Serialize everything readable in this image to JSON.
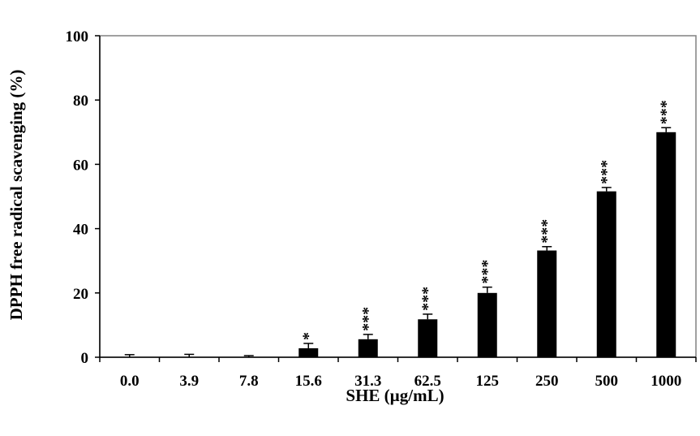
{
  "chart_data": {
    "type": "bar",
    "title": "",
    "xlabel": "SHE (µg/mL)",
    "ylabel": "DPPH free radical scavenging (%)",
    "ylim": [
      0,
      100
    ],
    "yticks": [
      0,
      20,
      40,
      60,
      80,
      100
    ],
    "categories": [
      "0.0",
      "3.9",
      "7.8",
      "15.6",
      "31.3",
      "62.5",
      "125",
      "250",
      "500",
      "1000"
    ],
    "values": [
      0,
      0,
      0,
      2.8,
      5.6,
      11.8,
      20.0,
      33.2,
      51.6,
      70.0
    ],
    "errors": [
      0.8,
      0.9,
      0.5,
      1.5,
      1.5,
      1.6,
      1.8,
      1.2,
      1.2,
      1.4
    ],
    "significance": [
      "",
      "",
      "",
      "*",
      "***",
      "***",
      "***",
      "***",
      "***",
      "***"
    ],
    "grid": false,
    "legend": "none",
    "bar_color": "#000000"
  }
}
